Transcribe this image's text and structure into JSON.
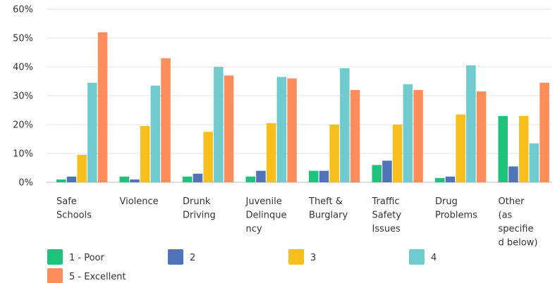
{
  "chart_data": {
    "type": "bar",
    "title": "",
    "xlabel": "",
    "ylabel": "",
    "ylim": [
      0,
      60
    ],
    "yticks": [
      "0%",
      "10%",
      "20%",
      "30%",
      "40%",
      "50%",
      "60%"
    ],
    "grid": true,
    "legend_position": "bottom",
    "categories": [
      [
        "Safe",
        "Schools"
      ],
      [
        "Violence"
      ],
      [
        "Drunk",
        "Driving"
      ],
      [
        "Juvenile",
        "Delinque",
        "ncy"
      ],
      [
        "Theft &",
        "Burglary"
      ],
      [
        "Traffic",
        "Safety",
        "Issues"
      ],
      [
        "Drug",
        "Problems"
      ],
      [
        "Other",
        "(as",
        "specifie",
        "d below)"
      ]
    ],
    "series": [
      {
        "name": "1 - Poor",
        "color": "#1ec37b",
        "values": [
          1,
          2,
          2,
          2,
          4,
          6,
          1.5,
          23
        ]
      },
      {
        "name": "2",
        "color": "#4f74b8",
        "values": [
          2,
          1,
          3,
          4,
          4,
          7.5,
          2,
          5.5
        ]
      },
      {
        "name": "3",
        "color": "#f8bf1c",
        "values": [
          9.5,
          19.5,
          17.5,
          20.5,
          20,
          20,
          23.5,
          23
        ]
      },
      {
        "name": "4",
        "color": "#6fcbcd",
        "values": [
          34.5,
          33.5,
          40,
          36.5,
          39.5,
          34,
          40.5,
          13.5
        ]
      },
      {
        "name": "5 - Excellent",
        "color": "#fd8d5a",
        "values": [
          52,
          43,
          37,
          36,
          32,
          32,
          31.5,
          34.5
        ]
      }
    ]
  }
}
